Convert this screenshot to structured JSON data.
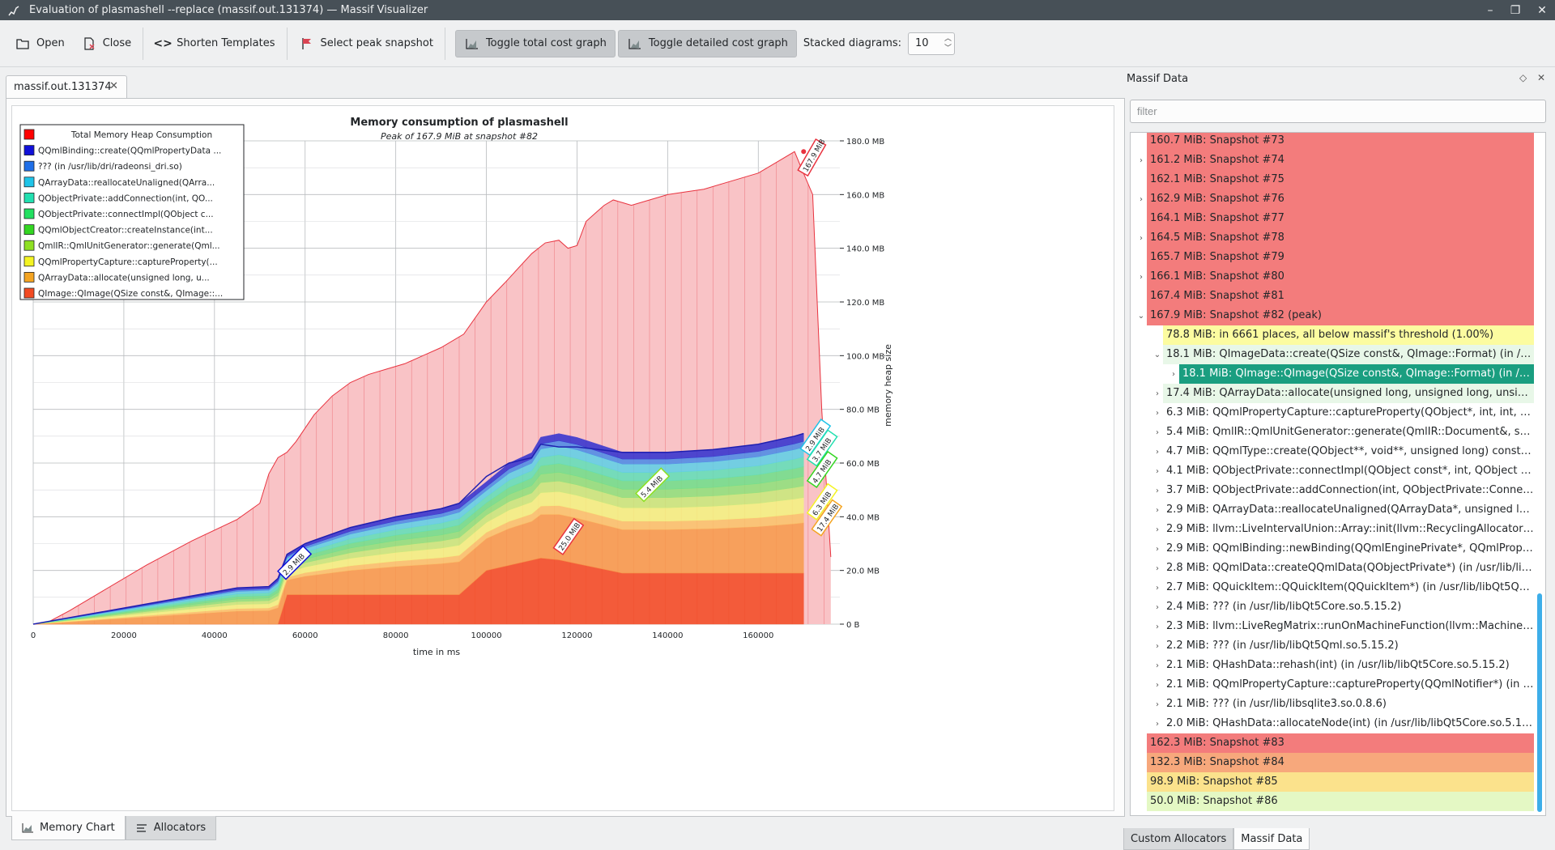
{
  "window": {
    "title": "Evaluation of plasmashell --replace (massif.out.131374) — Massif Visualizer"
  },
  "toolbar": {
    "open": "Open",
    "close": "Close",
    "shorten": "Shorten Templates",
    "peak": "Select peak snapshot",
    "toggle_total": "Toggle total cost graph",
    "toggle_detailed": "Toggle detailed cost graph",
    "stacked_label": "Stacked diagrams:",
    "stacked_value": "10"
  },
  "doc_tab": "massif.out.131374",
  "bottom_tabs": {
    "memory_chart": "Memory Chart",
    "allocators": "Allocators"
  },
  "chart_data": {
    "type": "area",
    "title": "Memory consumption of plasmashell",
    "subtitle": "Peak of 167.9 MiB at snapshot #82",
    "xlabel": "time in ms",
    "ylabel": "memory heap size",
    "xlim": [
      0,
      178000
    ],
    "ylim": [
      0,
      180
    ],
    "x_ticks": [
      "0",
      "20000",
      "40000",
      "60000",
      "80000",
      "100000",
      "120000",
      "140000",
      "160000"
    ],
    "y_ticks": [
      "0 B",
      "20.0 MB",
      "40.0 MB",
      "60.0 MB",
      "80.0 MB",
      "100.0 MB",
      "120.0 MB",
      "140.0 MB",
      "160.0 MB",
      "180.0 MB"
    ],
    "grid": true,
    "legend_position": "top-left",
    "legend": [
      {
        "label": "Total Memory Heap Consumption",
        "color": "#ff0000"
      },
      {
        "label": "QQmlBinding::create(QQmlPropertyData ...",
        "color": "#1010d8"
      },
      {
        "label": "??? (in /usr/lib/dri/radeonsi_dri.so)",
        "color": "#1f6fe8"
      },
      {
        "label": "QArrayData::reallocateUnaligned(QArra...",
        "color": "#1fc4e8"
      },
      {
        "label": "QObjectPrivate::addConnection(int, QO...",
        "color": "#22e0b0"
      },
      {
        "label": "QObjectPrivate::connectImpl(QObject c...",
        "color": "#22e060"
      },
      {
        "label": "QQmlObjectCreator::createInstance(int...",
        "color": "#33d622"
      },
      {
        "label": "QmlIR::QmlUnitGenerator::generate(Qml...",
        "color": "#8ee022"
      },
      {
        "label": "QQmlPropertyCapture::captureProperty(...",
        "color": "#f4f422"
      },
      {
        "label": "QArrayData::allocate(unsigned long, u...",
        "color": "#f4a422"
      },
      {
        "label": "QImage::QImage(QSize const&, QImage::...",
        "color": "#f24a22"
      }
    ],
    "total_series": {
      "name": "Total Memory Heap Consumption",
      "x": [
        0,
        3000,
        8000,
        15000,
        25000,
        35000,
        45000,
        50000,
        52000,
        54000,
        56000,
        58000,
        62000,
        66000,
        70000,
        74000,
        78000,
        82000,
        86000,
        90000,
        95000,
        100000,
        104000,
        110000,
        113000,
        116000,
        118000,
        120000,
        122000,
        124000,
        126000,
        128000,
        130000,
        132000,
        136000,
        140000,
        144000,
        148000,
        152000,
        156000,
        160000,
        164000,
        168000,
        170000,
        172000,
        174000,
        176000
      ],
      "values": [
        0,
        0.5,
        5,
        12,
        22,
        31,
        39,
        45,
        56,
        62,
        64,
        68,
        78,
        85,
        90,
        93,
        95,
        97,
        100,
        103,
        108,
        120,
        127,
        138,
        142,
        143,
        140,
        141,
        150,
        153,
        156,
        158,
        157,
        156,
        158,
        160,
        161,
        162,
        164,
        166,
        168,
        172,
        176,
        167.9,
        160,
        80,
        25
      ]
    },
    "stacked_series_totals": {
      "x": [
        0,
        10000,
        20000,
        30000,
        40000,
        45000,
        52000,
        54000,
        56000,
        60000,
        70000,
        80000,
        90000,
        94000,
        100000,
        105000,
        110000,
        112000,
        116000,
        120000,
        130000,
        140000,
        150000,
        160000,
        168000,
        170000
      ],
      "values": [
        0,
        3,
        6,
        9,
        12,
        13.5,
        14,
        17,
        26,
        30,
        36,
        40,
        43,
        45,
        55,
        60,
        62,
        67,
        66,
        66,
        64,
        64,
        65,
        67,
        70,
        71
      ]
    },
    "annotations": [
      "167.9 MiB",
      "2.9 MiB",
      "3.7 MiB",
      "4.7 MiB",
      "5.4 MiB",
      "6.3 MiB",
      "17.4 MiB",
      "25.0 MiB",
      "2.9 MiB"
    ]
  },
  "dock": {
    "title": "Massif Data",
    "filter_placeholder": "filter",
    "rows": [
      {
        "text": "160.7 MiB: Snapshot #73",
        "bg": "#f37c7c",
        "indent": 0,
        "chev": ""
      },
      {
        "text": "161.2 MiB: Snapshot #74",
        "bg": "#f37c7c",
        "indent": 0,
        "chev": "›"
      },
      {
        "text": "162.1 MiB: Snapshot #75",
        "bg": "#f37c7c",
        "indent": 0,
        "chev": ""
      },
      {
        "text": "162.9 MiB: Snapshot #76",
        "bg": "#f37c7c",
        "indent": 0,
        "chev": "›"
      },
      {
        "text": "164.1 MiB: Snapshot #77",
        "bg": "#f37c7c",
        "indent": 0,
        "chev": ""
      },
      {
        "text": "164.5 MiB: Snapshot #78",
        "bg": "#f37c7c",
        "indent": 0,
        "chev": "›"
      },
      {
        "text": "165.7 MiB: Snapshot #79",
        "bg": "#f37c7c",
        "indent": 0,
        "chev": ""
      },
      {
        "text": "166.1 MiB: Snapshot #80",
        "bg": "#f37c7c",
        "indent": 0,
        "chev": "›"
      },
      {
        "text": "167.4 MiB: Snapshot #81",
        "bg": "#f37c7c",
        "indent": 0,
        "chev": ""
      },
      {
        "text": "167.9 MiB: Snapshot #82 (peak)",
        "bg": "#f37c7c",
        "indent": 0,
        "chev": "⌄"
      },
      {
        "text": "78.8 MiB: in 6661 places, all below massif's threshold (1.00%)",
        "bg": "#fcfca0",
        "indent": 1,
        "chev": ""
      },
      {
        "text": "18.1 MiB: QImageData::create(QSize const&, QImage::Format) (in /usr/li...",
        "bg": "#e8f7e8",
        "indent": 1,
        "chev": "⌄"
      },
      {
        "text": "18.1 MiB: QImage::QImage(QSize const&, QImage::Format) (in /usr/li...",
        "bg": "#1a9e80",
        "indent": 2,
        "chev": "›",
        "selected": true
      },
      {
        "text": "17.4 MiB: QArrayData::allocate(unsigned long, unsigned long, unsigned...",
        "bg": "#e8f7e8",
        "indent": 1,
        "chev": "›"
      },
      {
        "text": "6.3 MiB: QQmlPropertyCapture::captureProperty(QObject*, int, int, bool...",
        "bg": "#ffffff",
        "indent": 1,
        "chev": "›"
      },
      {
        "text": "5.4 MiB: QmlIR::QmlUnitGenerator::generate(QmlIR::Document&, std::f...",
        "bg": "#ffffff",
        "indent": 1,
        "chev": "›"
      },
      {
        "text": "4.7 MiB: QQmlType::create(QObject**, void**, unsigned long) const (in ...",
        "bg": "#ffffff",
        "indent": 1,
        "chev": "›"
      },
      {
        "text": "4.1 MiB: QObjectPrivate::connectImpl(QObject const*, int, QObject cons...",
        "bg": "#ffffff",
        "indent": 1,
        "chev": "›"
      },
      {
        "text": "3.7 MiB: QObjectPrivate::addConnection(int, QObjectPrivate::Connectio...",
        "bg": "#ffffff",
        "indent": 1,
        "chev": "›"
      },
      {
        "text": "2.9 MiB: QArrayData::reallocateUnaligned(QArrayData*, unsigned long, ...",
        "bg": "#ffffff",
        "indent": 1,
        "chev": "›"
      },
      {
        "text": "2.9 MiB: llvm::LiveIntervalUnion::Array::init(llvm::RecyclingAllocator<llv...",
        "bg": "#ffffff",
        "indent": 1,
        "chev": "›"
      },
      {
        "text": "2.9 MiB: QQmlBinding::newBinding(QQmlEnginePrivate*, QQmlPropert...",
        "bg": "#ffffff",
        "indent": 1,
        "chev": "›"
      },
      {
        "text": "2.8 MiB: QQmlData::createQQmlData(QObjectPrivate*) (in /usr/lib/libQt...",
        "bg": "#ffffff",
        "indent": 1,
        "chev": "›"
      },
      {
        "text": "2.7 MiB: QQuickItem::QQuickItem(QQuickItem*) (in /usr/lib/libQt5Quick...",
        "bg": "#ffffff",
        "indent": 1,
        "chev": "›"
      },
      {
        "text": "2.4 MiB: ??? (in /usr/lib/libQt5Core.so.5.15.2)",
        "bg": "#ffffff",
        "indent": 1,
        "chev": "›"
      },
      {
        "text": "2.3 MiB: llvm::LiveRegMatrix::runOnMachineFunction(llvm::MachineFun...",
        "bg": "#ffffff",
        "indent": 1,
        "chev": "›"
      },
      {
        "text": "2.2 MiB: ??? (in /usr/lib/libQt5Qml.so.5.15.2)",
        "bg": "#ffffff",
        "indent": 1,
        "chev": "›"
      },
      {
        "text": "2.1 MiB: QHashData::rehash(int) (in /usr/lib/libQt5Core.so.5.15.2)",
        "bg": "#ffffff",
        "indent": 1,
        "chev": "›"
      },
      {
        "text": "2.1 MiB: QQmlPropertyCapture::captureProperty(QQmlNotifier*) (in /us...",
        "bg": "#ffffff",
        "indent": 1,
        "chev": "›"
      },
      {
        "text": "2.1 MiB: ??? (in /usr/lib/libsqlite3.so.0.8.6)",
        "bg": "#ffffff",
        "indent": 1,
        "chev": "›"
      },
      {
        "text": "2.0 MiB: QHashData::allocateNode(int) (in /usr/lib/libQt5Core.so.5.15.2)",
        "bg": "#ffffff",
        "indent": 1,
        "chev": "›"
      },
      {
        "text": "162.3 MiB: Snapshot #83",
        "bg": "#f37c7c",
        "indent": 0,
        "chev": ""
      },
      {
        "text": "132.3 MiB: Snapshot #84",
        "bg": "#f7a87c",
        "indent": 0,
        "chev": ""
      },
      {
        "text": "98.9 MiB: Snapshot #85",
        "bg": "#fbe28c",
        "indent": 0,
        "chev": ""
      },
      {
        "text": "50.0 MiB: Snapshot #86",
        "bg": "#e4f8c4",
        "indent": 0,
        "chev": ""
      }
    ]
  },
  "dock_tabs": {
    "custom": "Custom Allocators",
    "massif": "Massif Data"
  }
}
